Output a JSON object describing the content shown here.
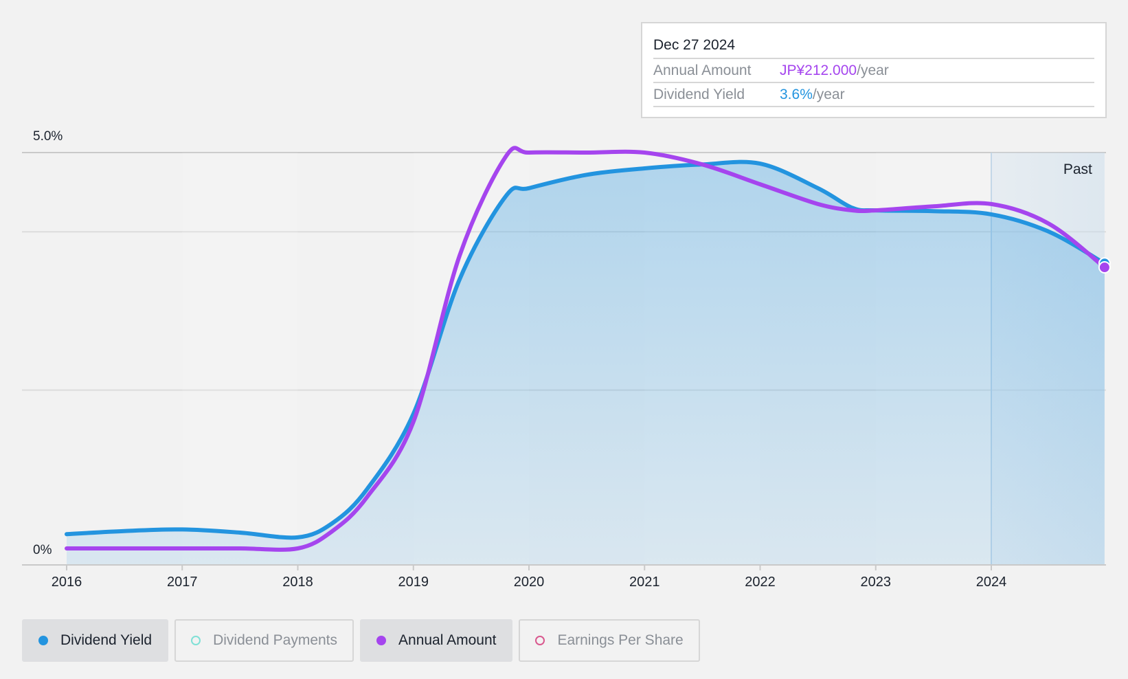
{
  "tooltip": {
    "date": "Dec 27 2024",
    "rows": [
      {
        "key": "Annual Amount",
        "value": "JP¥212.000",
        "unit": "/year"
      },
      {
        "key": "Dividend Yield",
        "value": "3.6%",
        "unit": "/year"
      }
    ]
  },
  "legend": [
    {
      "label": "Dividend Yield",
      "state": "active",
      "color": "#2394df"
    },
    {
      "label": "Dividend Payments",
      "state": "inactive",
      "color": "#7fe0d6"
    },
    {
      "label": "Annual Amount",
      "state": "active",
      "color": "#a545ee"
    },
    {
      "label": "Earnings Per Share",
      "state": "inactive",
      "color": "#d9588e"
    }
  ],
  "chart_data": {
    "type": "line",
    "y_tick_labels": [
      "5.0%",
      "0%"
    ],
    "ylim": [
      0,
      5.0
    ],
    "x_tick_labels": [
      "2016",
      "2017",
      "2018",
      "2019",
      "2020",
      "2021",
      "2022",
      "2023",
      "2024"
    ],
    "xlim": [
      2016,
      2024.98
    ],
    "past_region_label": "Past",
    "past_region_start": 2024,
    "grid": true,
    "colors": {
      "dividend_yield": "#2394df",
      "annual_amount": "#a545ee"
    },
    "series": [
      {
        "name": "Dividend Yield",
        "color": "#2394df",
        "fill": true,
        "points": [
          [
            2016.0,
            0.18
          ],
          [
            2016.5,
            0.22
          ],
          [
            2017.0,
            0.24
          ],
          [
            2017.5,
            0.2
          ],
          [
            2018.0,
            0.14
          ],
          [
            2018.3,
            0.32
          ],
          [
            2018.6,
            0.75
          ],
          [
            2019.0,
            1.7
          ],
          [
            2019.4,
            3.4
          ],
          [
            2019.8,
            4.45
          ],
          [
            2020.0,
            4.55
          ],
          [
            2020.5,
            4.72
          ],
          [
            2021.0,
            4.8
          ],
          [
            2021.5,
            4.85
          ],
          [
            2022.0,
            4.86
          ],
          [
            2022.5,
            4.55
          ],
          [
            2022.8,
            4.3
          ],
          [
            2023.0,
            4.27
          ],
          [
            2023.5,
            4.26
          ],
          [
            2024.0,
            4.22
          ],
          [
            2024.5,
            4.0
          ],
          [
            2024.98,
            3.6
          ]
        ]
      },
      {
        "name": "Annual Amount",
        "color": "#a545ee",
        "fill": false,
        "points": [
          [
            2016.0,
            0.0
          ],
          [
            2016.5,
            0.0
          ],
          [
            2017.0,
            0.0
          ],
          [
            2017.5,
            0.0
          ],
          [
            2018.0,
            0.0
          ],
          [
            2018.3,
            0.22
          ],
          [
            2018.6,
            0.65
          ],
          [
            2019.0,
            1.6
          ],
          [
            2019.4,
            3.7
          ],
          [
            2019.8,
            4.95
          ],
          [
            2020.0,
            5.0
          ],
          [
            2020.5,
            5.0
          ],
          [
            2021.0,
            5.0
          ],
          [
            2021.5,
            4.85
          ],
          [
            2022.0,
            4.6
          ],
          [
            2022.5,
            4.35
          ],
          [
            2022.8,
            4.27
          ],
          [
            2023.0,
            4.27
          ],
          [
            2023.5,
            4.32
          ],
          [
            2024.0,
            4.35
          ],
          [
            2024.5,
            4.1
          ],
          [
            2024.98,
            3.55
          ]
        ]
      }
    ]
  }
}
